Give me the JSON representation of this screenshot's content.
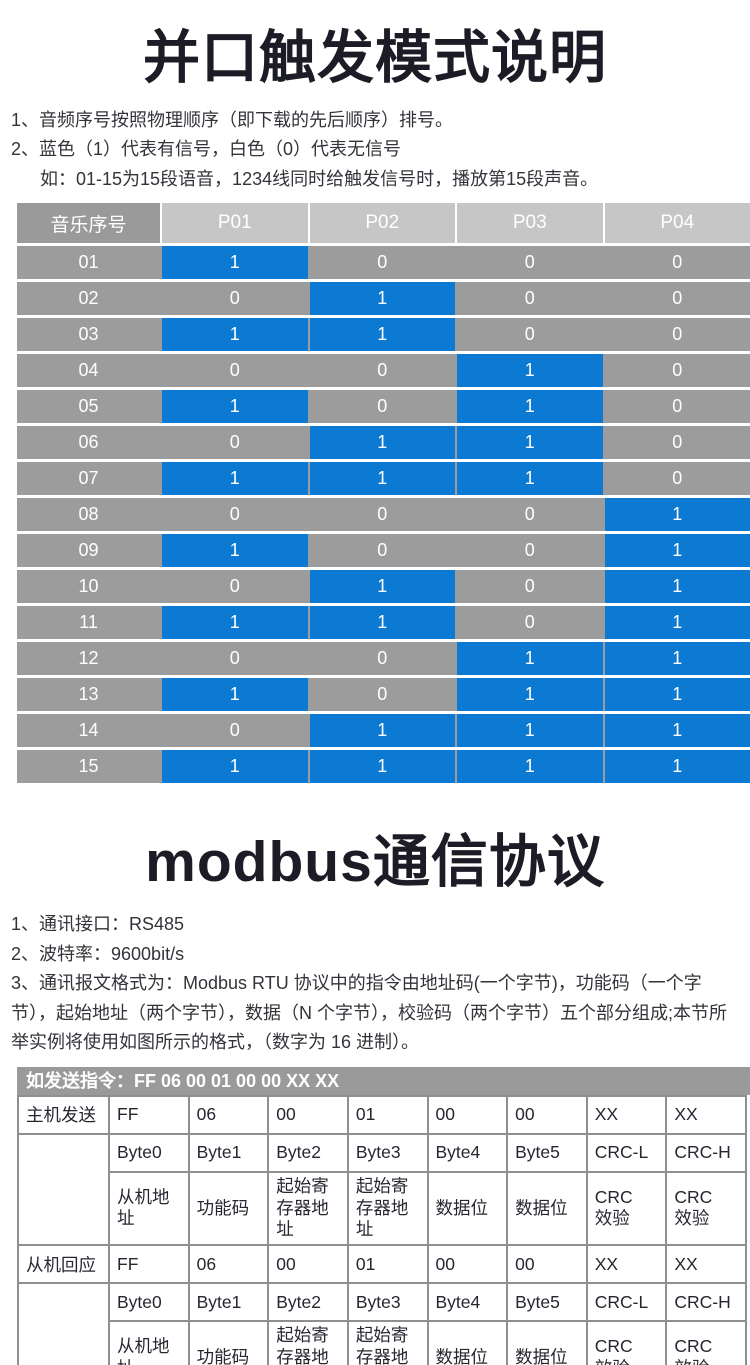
{
  "colors": {
    "signal_blue": "#0c7ad2",
    "cell_gray": "#9c9c9c",
    "header_light_gray": "#c6c6c6",
    "header_dark_gray": "#9a9a9a",
    "bar_gray": "#9a9a9a",
    "table_border_gray": "#8f8f8f"
  },
  "section1": {
    "title": "并口触发模式说明",
    "notes": [
      "1、音频序号按照物理顺序（即下载的先后顺序）排号。",
      "2、蓝色（1）代表有信号，白色（0）代表无信号",
      "如：01-15为15段语音，1234线同时给触发信号时，播放第15段声音。"
    ]
  },
  "parallel_table": {
    "headers": [
      "音乐序号",
      "P01",
      "P02",
      "P03",
      "P04"
    ],
    "rows": [
      {
        "no": "01",
        "bits": [
          1,
          0,
          0,
          0
        ]
      },
      {
        "no": "02",
        "bits": [
          0,
          1,
          0,
          0
        ]
      },
      {
        "no": "03",
        "bits": [
          1,
          1,
          0,
          0
        ]
      },
      {
        "no": "04",
        "bits": [
          0,
          0,
          1,
          0
        ]
      },
      {
        "no": "05",
        "bits": [
          1,
          0,
          1,
          0
        ]
      },
      {
        "no": "06",
        "bits": [
          0,
          1,
          1,
          0
        ]
      },
      {
        "no": "07",
        "bits": [
          1,
          1,
          1,
          0
        ]
      },
      {
        "no": "08",
        "bits": [
          0,
          0,
          0,
          1
        ]
      },
      {
        "no": "09",
        "bits": [
          1,
          0,
          0,
          1
        ]
      },
      {
        "no": "10",
        "bits": [
          0,
          1,
          0,
          1
        ]
      },
      {
        "no": "11",
        "bits": [
          1,
          1,
          0,
          1
        ]
      },
      {
        "no": "12",
        "bits": [
          0,
          0,
          1,
          1
        ]
      },
      {
        "no": "13",
        "bits": [
          1,
          0,
          1,
          1
        ]
      },
      {
        "no": "14",
        "bits": [
          0,
          1,
          1,
          1
        ]
      },
      {
        "no": "15",
        "bits": [
          1,
          1,
          1,
          1
        ]
      }
    ]
  },
  "section2": {
    "title": "modbus通信协议",
    "notes": [
      "1、通讯接口：RS485",
      "2、波特率：9600bit/s",
      "3、通讯报文格式为：Modbus RTU 协议中的指令由地址码(一个字节)，功能码（一个字节），起始地址（两个字节），数据（N 个字节），校验码（两个字节）五个部分组成;本节所举实例将使用如图所示的格式，（数字为 16 进制）。"
    ]
  },
  "modbus_table": {
    "caption": "如发送指令：FF 06 00 01 00 00 XX XX",
    "sections": [
      {
        "label": "主机发送",
        "values": [
          "FF",
          "06",
          "00",
          "01",
          "00",
          "00",
          "XX",
          "XX"
        ],
        "byte_labels": [
          "Byte0",
          "Byte1",
          "Byte2",
          "Byte3",
          "Byte4",
          "Byte5",
          "CRC-L",
          "CRC-H"
        ],
        "field_labels": [
          "从机地\n址",
          "功能码",
          "起始寄\n存器地址",
          "起始寄\n存器地址",
          "数据位",
          "数据位",
          "CRC\n效验",
          "CRC\n效验"
        ]
      },
      {
        "label": "从机回应",
        "values": [
          "FF",
          "06",
          "00",
          "01",
          "00",
          "00",
          "XX",
          "XX"
        ],
        "byte_labels": [
          "Byte0",
          "Byte1",
          "Byte2",
          "Byte3",
          "Byte4",
          "Byte5",
          "CRC-L",
          "CRC-H"
        ],
        "field_labels": [
          "从机地\n址",
          "功能码",
          "起始寄\n存器地址",
          "起始寄\n存器地址",
          "数据位",
          "数据位",
          "CRC\n效验",
          "CRC\n效验"
        ]
      }
    ]
  }
}
